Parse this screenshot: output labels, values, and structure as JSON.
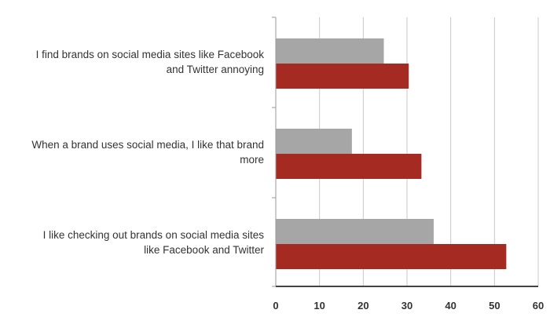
{
  "chart_data": {
    "type": "bar",
    "orientation": "horizontal",
    "categories": [
      [
        "I find brands on social media sites like Facebook",
        "and Twitter annoying"
      ],
      [
        "When a brand uses social media, I like that brand",
        "more"
      ],
      [
        "I like checking out brands on social media sites",
        "like Facebook and Twitter"
      ]
    ],
    "series": [
      {
        "values": [
          24.7,
          17.4,
          36.1
        ],
        "color": "#a6a6a6"
      },
      {
        "values": [
          30.4,
          33.3,
          52.7
        ],
        "color": "#a52a22"
      }
    ],
    "xlim": [
      0,
      60
    ],
    "xticks": [
      "0",
      "10",
      "20",
      "30",
      "40",
      "50",
      "60"
    ],
    "grid": true,
    "legend": "none",
    "title": "",
    "xlabel": "",
    "ylabel": ""
  }
}
